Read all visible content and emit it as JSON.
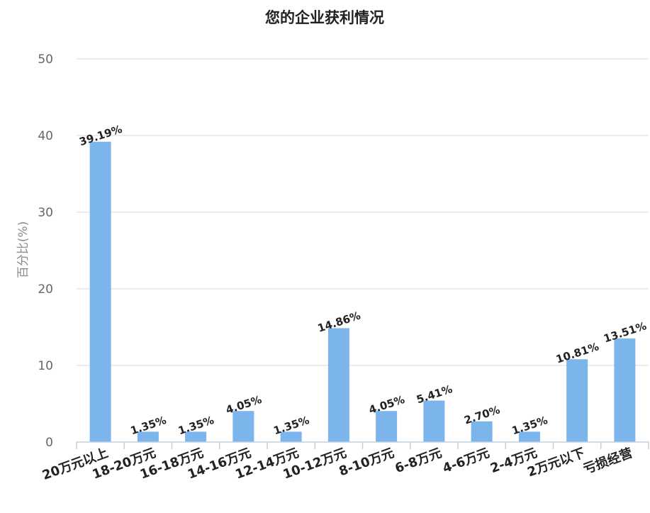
{
  "chart_data": {
    "type": "bar",
    "title": "您的企业获利情况",
    "xlabel": "",
    "ylabel": "百分比(%)",
    "ylim": [
      0,
      50
    ],
    "yticks": [
      0,
      10,
      20,
      30,
      40,
      50
    ],
    "grid": true,
    "categories": [
      "20万元以上",
      "18-20万元",
      "16-18万元",
      "14-16万元",
      "12-14万元",
      "10-12万元",
      "8-10万元",
      "6-8万元",
      "4-6万元",
      "2-4万元",
      "2万元以下",
      "亏损经营"
    ],
    "values": [
      39.19,
      1.35,
      1.35,
      4.05,
      1.35,
      14.86,
      4.05,
      5.41,
      2.7,
      1.35,
      10.81,
      13.51
    ],
    "data_labels": [
      "39.19%",
      "1.35%",
      "1.35%",
      "4.05%",
      "1.35%",
      "14.86%",
      "4.05%",
      "5.41%",
      "2.70%",
      "1.35%",
      "10.81%",
      "13.51%"
    ],
    "colors": {
      "bar": "#7cb4ec",
      "grid": "#d8d8d8",
      "axis": "#c0d0e0"
    }
  }
}
